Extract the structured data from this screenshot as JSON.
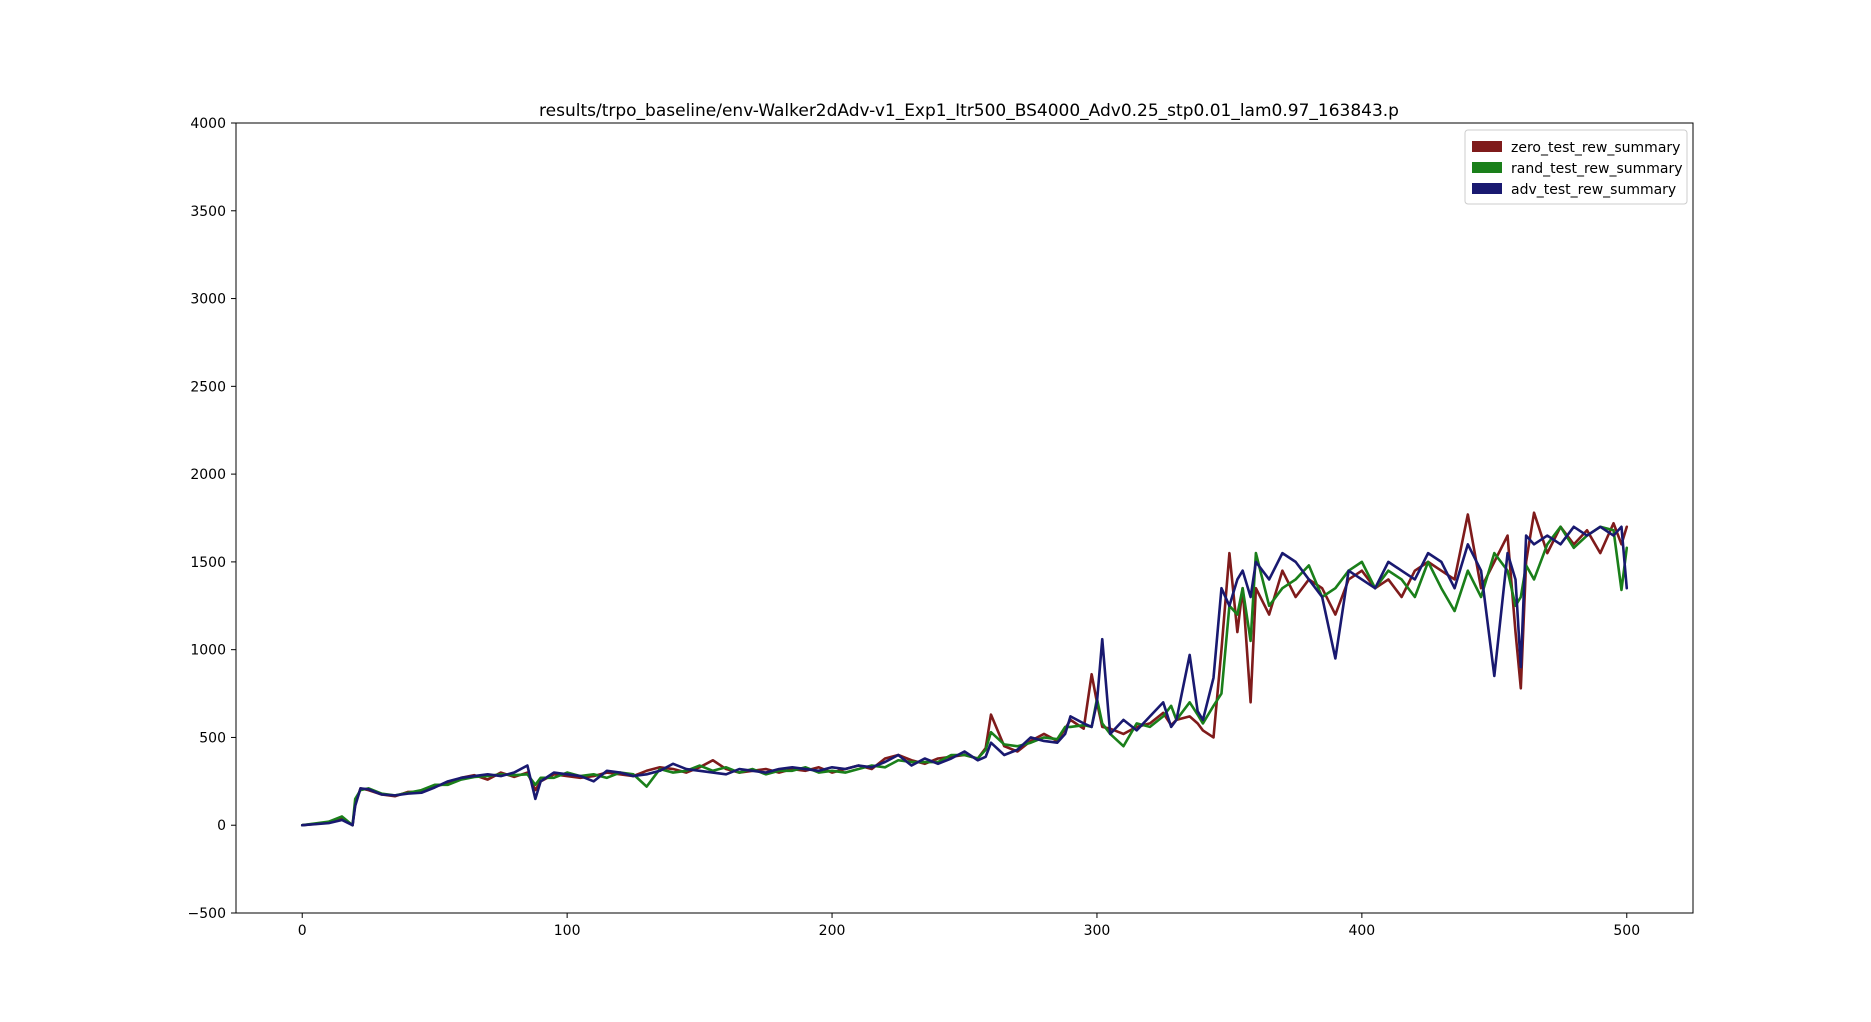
{
  "chart_data": {
    "type": "line",
    "title": "results/trpo_baseline/env-Walker2dAdv-v1_Exp1_Itr500_BS4000_Adv0.25_stp0.01_lam0.97_163843.p",
    "xlabel": "",
    "ylabel": "",
    "xlim": [
      -25,
      525
    ],
    "ylim": [
      -500,
      4000
    ],
    "xticks": [
      0,
      100,
      200,
      300,
      400,
      500
    ],
    "yticks": [
      -500,
      0,
      500,
      1000,
      1500,
      2000,
      2500,
      3000,
      3500,
      4000
    ],
    "grid": false,
    "legend_position": "top-right",
    "x": [
      0,
      10,
      15,
      19,
      20,
      22,
      25,
      30,
      35,
      40,
      45,
      50,
      55,
      60,
      65,
      70,
      75,
      80,
      85,
      88,
      90,
      95,
      100,
      105,
      110,
      115,
      120,
      125,
      130,
      135,
      140,
      145,
      150,
      155,
      160,
      165,
      170,
      175,
      180,
      185,
      190,
      195,
      200,
      205,
      210,
      215,
      220,
      225,
      230,
      235,
      240,
      245,
      250,
      255,
      258,
      260,
      265,
      270,
      275,
      280,
      285,
      288,
      290,
      295,
      298,
      300,
      302,
      305,
      310,
      315,
      320,
      325,
      328,
      330,
      335,
      338,
      340,
      344,
      347,
      350,
      353,
      355,
      358,
      360,
      365,
      370,
      375,
      380,
      385,
      390,
      395,
      400,
      405,
      410,
      415,
      420,
      425,
      430,
      435,
      440,
      445,
      450,
      455,
      458,
      460,
      462,
      465,
      470,
      475,
      480,
      485,
      490,
      495,
      498,
      500
    ],
    "series": [
      {
        "name": "zero_test_rew_summary",
        "color": "#7f1b1b",
        "values": [
          0,
          15,
          40,
          0,
          120,
          210,
          200,
          175,
          165,
          190,
          190,
          220,
          240,
          270,
          285,
          260,
          300,
          275,
          300,
          200,
          250,
          290,
          280,
          270,
          280,
          300,
          290,
          280,
          310,
          330,
          320,
          300,
          330,
          370,
          320,
          300,
          310,
          320,
          300,
          320,
          310,
          330,
          300,
          320,
          340,
          320,
          380,
          400,
          370,
          350,
          380,
          390,
          400,
          380,
          440,
          630,
          450,
          420,
          480,
          520,
          480,
          550,
          600,
          550,
          860,
          700,
          560,
          550,
          520,
          560,
          580,
          640,
          570,
          600,
          620,
          580,
          540,
          500,
          1000,
          1550,
          1100,
          1350,
          700,
          1350,
          1200,
          1450,
          1300,
          1400,
          1350,
          1200,
          1400,
          1450,
          1350,
          1400,
          1300,
          1450,
          1500,
          1450,
          1400,
          1770,
          1350,
          1500,
          1650,
          1100,
          780,
          1500,
          1780,
          1550,
          1700,
          1600,
          1680,
          1550,
          1720,
          1600,
          1700
        ]
      },
      {
        "name": "rand_test_rew_summary",
        "color": "#1a7f1a",
        "values": [
          0,
          20,
          50,
          0,
          150,
          200,
          210,
          180,
          170,
          185,
          200,
          230,
          230,
          260,
          275,
          280,
          290,
          285,
          290,
          230,
          270,
          270,
          300,
          280,
          290,
          270,
          300,
          290,
          220,
          320,
          300,
          310,
          340,
          310,
          330,
          300,
          320,
          290,
          310,
          310,
          330,
          300,
          310,
          300,
          320,
          340,
          330,
          370,
          360,
          360,
          360,
          400,
          400,
          380,
          430,
          530,
          460,
          450,
          470,
          500,
          490,
          560,
          560,
          570,
          560,
          720,
          580,
          520,
          450,
          580,
          560,
          620,
          680,
          600,
          700,
          630,
          580,
          680,
          750,
          1250,
          1200,
          1350,
          1050,
          1550,
          1250,
          1350,
          1400,
          1480,
          1300,
          1350,
          1450,
          1500,
          1350,
          1450,
          1400,
          1300,
          1500,
          1350,
          1220,
          1450,
          1300,
          1550,
          1450,
          1250,
          1300,
          1480,
          1400,
          1600,
          1700,
          1580,
          1650,
          1700,
          1680,
          1340,
          1580
        ]
      },
      {
        "name": "adv_test_rew_summary",
        "color": "#191970",
        "values": [
          0,
          12,
          30,
          0,
          110,
          210,
          205,
          175,
          170,
          180,
          185,
          215,
          250,
          270,
          280,
          290,
          280,
          300,
          340,
          150,
          250,
          300,
          290,
          280,
          250,
          310,
          300,
          280,
          290,
          310,
          350,
          320,
          310,
          300,
          290,
          320,
          310,
          300,
          320,
          330,
          320,
          310,
          330,
          320,
          340,
          330,
          360,
          400,
          340,
          380,
          350,
          380,
          420,
          370,
          390,
          470,
          400,
          430,
          500,
          480,
          470,
          520,
          620,
          580,
          560,
          700,
          1060,
          520,
          600,
          540,
          620,
          700,
          560,
          600,
          970,
          650,
          600,
          840,
          1350,
          1250,
          1400,
          1450,
          1300,
          1500,
          1400,
          1550,
          1500,
          1400,
          1300,
          950,
          1450,
          1400,
          1350,
          1500,
          1450,
          1400,
          1550,
          1500,
          1350,
          1600,
          1450,
          850,
          1550,
          1400,
          900,
          1650,
          1600,
          1650,
          1600,
          1700,
          1650,
          1700,
          1650,
          1700,
          1350
        ]
      }
    ]
  }
}
